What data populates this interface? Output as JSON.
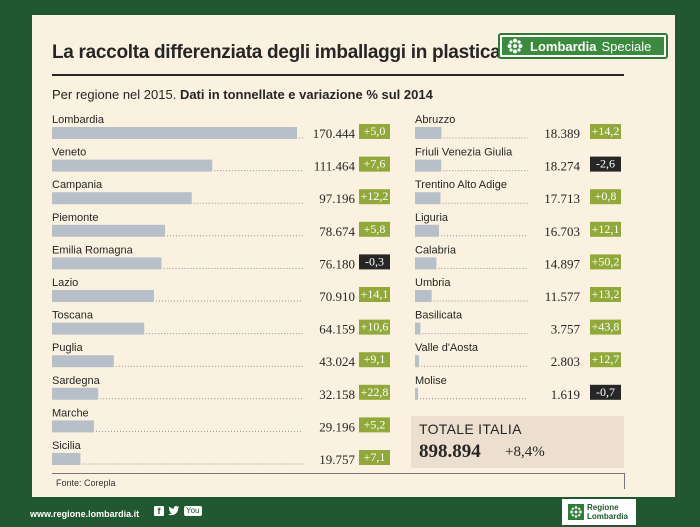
{
  "header": {
    "title": "La raccolta differenziata degli imballaggi in plastica",
    "subtitle_plain": "Per regione nel 2015.",
    "subtitle_bold": "Dati in tonnellate e variazione % sul 2014",
    "badge_bold": "Lombardia",
    "badge_text": "Speciale"
  },
  "colors": {
    "bar": "#b7c0c9",
    "positive": "#91a93b",
    "negative": "#262626",
    "background_frame": "#22582f",
    "panel": "#faf1e0",
    "accent": "#3c8a3f"
  },
  "chart_data": {
    "type": "bar",
    "orientation": "horizontal",
    "unit": "tonnellate",
    "left_column": [
      {
        "region": "Lombardia",
        "value": 170444,
        "value_label": "170.444",
        "change": 5.0,
        "change_label": "+5,0"
      },
      {
        "region": "Veneto",
        "value": 111464,
        "value_label": "111.464",
        "change": 7.6,
        "change_label": "+7,6"
      },
      {
        "region": "Campania",
        "value": 97196,
        "value_label": "97.196",
        "change": 12.2,
        "change_label": "+12,2"
      },
      {
        "region": "Piemonte",
        "value": 78674,
        "value_label": "78.674",
        "change": 5.8,
        "change_label": "+5,8"
      },
      {
        "region": "Emilia Romagna",
        "value": 76180,
        "value_label": "76.180",
        "change": -0.3,
        "change_label": "-0,3"
      },
      {
        "region": "Lazio",
        "value": 70910,
        "value_label": "70.910",
        "change": 14.1,
        "change_label": "+14,1"
      },
      {
        "region": "Toscana",
        "value": 64159,
        "value_label": "64.159",
        "change": 10.6,
        "change_label": "+10,6"
      },
      {
        "region": "Puglia",
        "value": 43024,
        "value_label": "43.024",
        "change": 9.1,
        "change_label": "+9,1"
      },
      {
        "region": "Sardegna",
        "value": 32158,
        "value_label": "32.158",
        "change": 22.8,
        "change_label": "+22,8"
      },
      {
        "region": "Marche",
        "value": 29196,
        "value_label": "29.196",
        "change": 5.2,
        "change_label": "+5,2"
      },
      {
        "region": "Sicilia",
        "value": 19757,
        "value_label": "19.757",
        "change": 7.1,
        "change_label": "+7,1"
      }
    ],
    "right_column": [
      {
        "region": "Abruzzo",
        "value": 18389,
        "value_label": "18.389",
        "change": 14.2,
        "change_label": "+14,2"
      },
      {
        "region": "Friuli Venezia Giulia",
        "value": 18274,
        "value_label": "18.274",
        "change": -2.6,
        "change_label": "-2,6"
      },
      {
        "region": "Trentino Alto Adige",
        "value": 17713,
        "value_label": "17.713",
        "change": 0.8,
        "change_label": "+0,8"
      },
      {
        "region": "Liguria",
        "value": 16703,
        "value_label": "16.703",
        "change": 12.1,
        "change_label": "+12,1"
      },
      {
        "region": "Calabria",
        "value": 14897,
        "value_label": "14.897",
        "change": 50.2,
        "change_label": "+50,2"
      },
      {
        "region": "Umbria",
        "value": 11577,
        "value_label": "11.577",
        "change": 13.2,
        "change_label": "+13,2"
      },
      {
        "region": "Basilicata",
        "value": 3757,
        "value_label": "3.757",
        "change": 43.8,
        "change_label": "+43,8"
      },
      {
        "region": "Valle d'Aosta",
        "value": 2803,
        "value_label": "2.803",
        "change": 12.7,
        "change_label": "+12,7"
      },
      {
        "region": "Molise",
        "value": 1619,
        "value_label": "1.619",
        "change": -0.7,
        "change_label": "-0,7"
      }
    ],
    "total": {
      "label": "TOTALE ITALIA",
      "value": 898894,
      "value_label": "898.894",
      "change": 8.4,
      "change_label": "+8,4%"
    }
  },
  "source": "Fonte: Corepla",
  "footer": {
    "url": "www.regione.lombardia.it",
    "social_fb": "f",
    "social_yt": "You",
    "logo_line1": "Regione",
    "logo_line2": "Lombardia"
  }
}
